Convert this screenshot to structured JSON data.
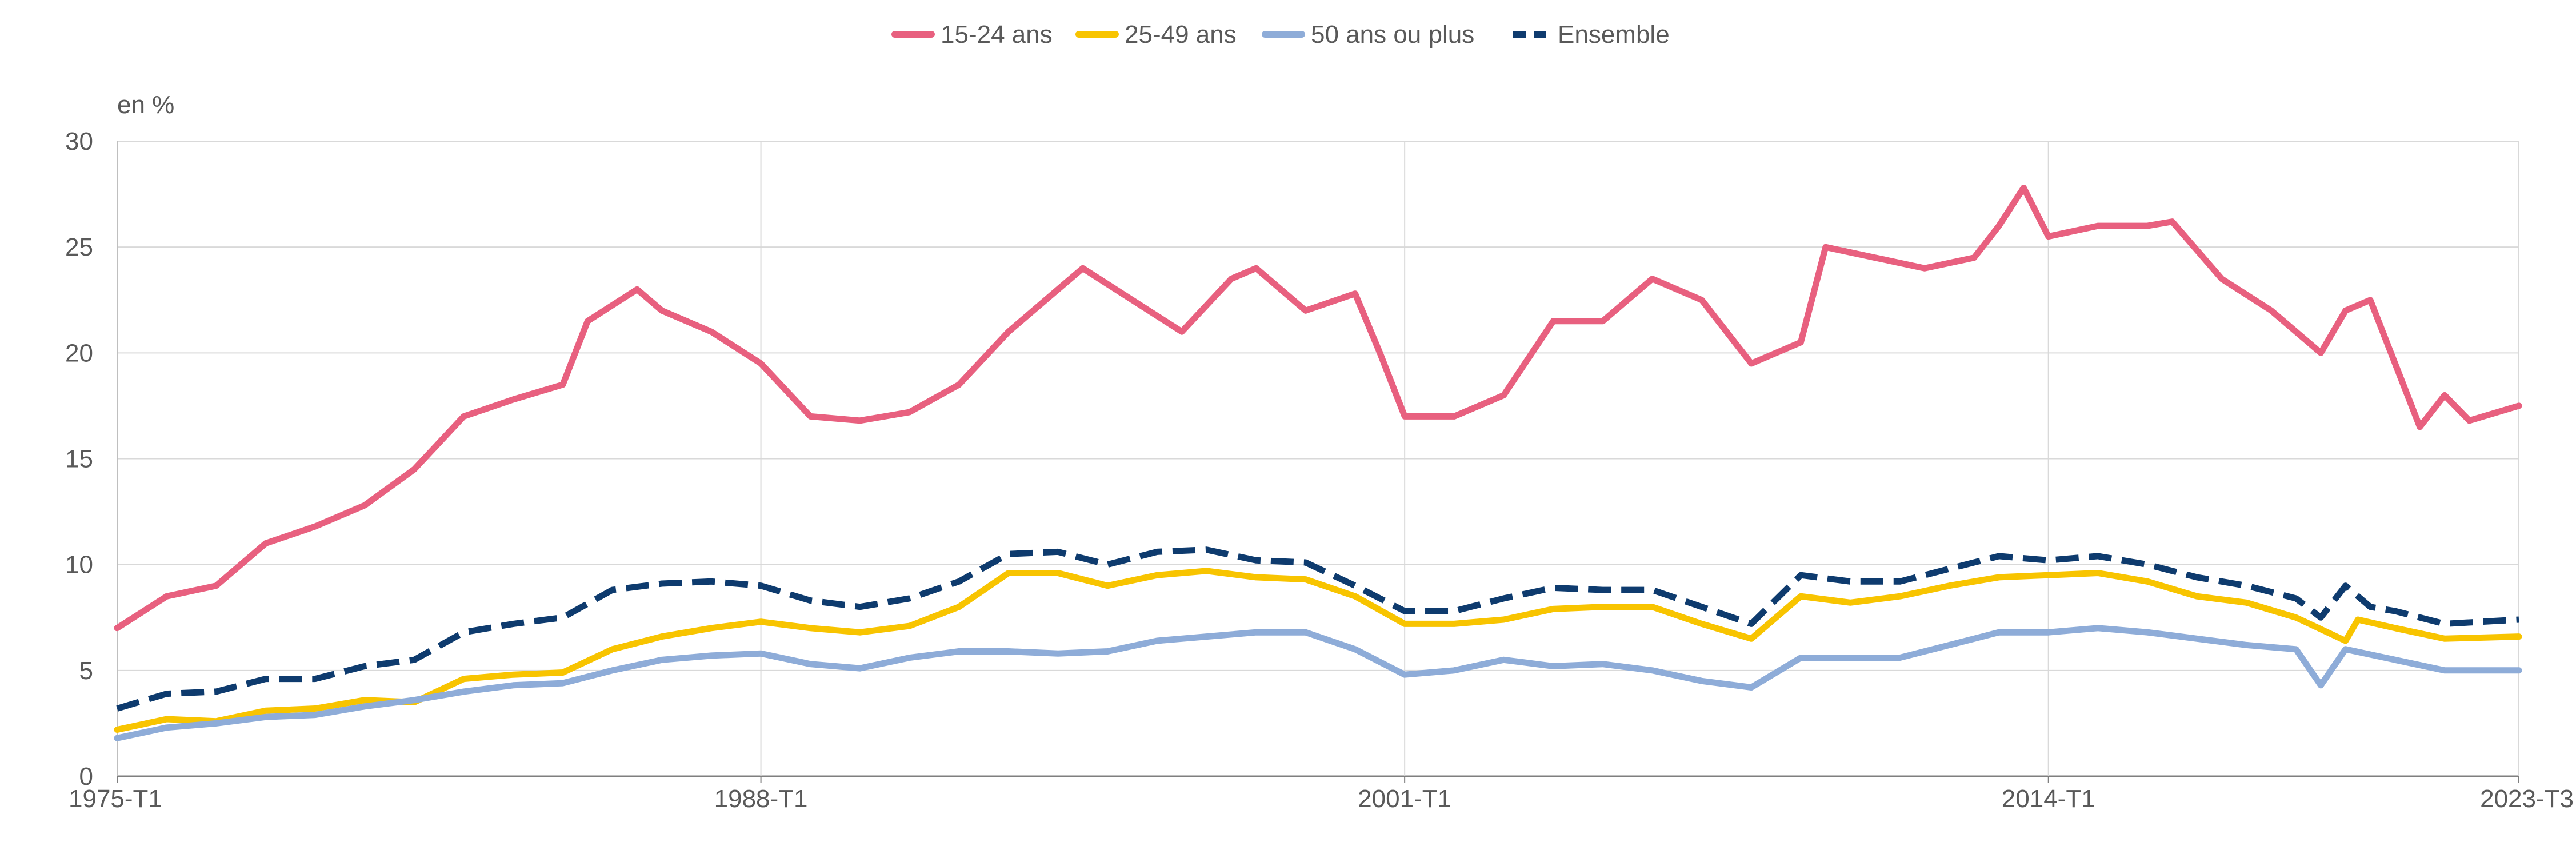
{
  "chart_data": {
    "type": "line",
    "unit_label": "en %",
    "y_range": [
      0,
      30
    ],
    "y_ticks": [
      0,
      5,
      10,
      15,
      20,
      25,
      30
    ],
    "x_range": [
      "1975-T1",
      "2023-T3"
    ],
    "x_tick_labels": [
      "1975-T1",
      "1988-T1",
      "2001-T1",
      "2014-T1",
      "2023-T3"
    ],
    "grid": true,
    "legend_position": "top-center",
    "series": [
      {
        "name": "15-24 ans",
        "color": "#e8607f",
        "dash": "solid",
        "points": [
          [
            "1975-T1",
            7.0
          ],
          [
            "1976-T1",
            8.5
          ],
          [
            "1977-T1",
            9.0
          ],
          [
            "1978-T1",
            11.0
          ],
          [
            "1979-T1",
            11.8
          ],
          [
            "1980-T1",
            12.8
          ],
          [
            "1981-T1",
            14.5
          ],
          [
            "1982-T1",
            17.0
          ],
          [
            "1983-T1",
            17.8
          ],
          [
            "1984-T1",
            18.5
          ],
          [
            "1984-T3",
            21.5
          ],
          [
            "1985-T3",
            23.0
          ],
          [
            "1986-T1",
            22.0
          ],
          [
            "1987-T1",
            21.0
          ],
          [
            "1988-T1",
            19.5
          ],
          [
            "1989-T1",
            17.0
          ],
          [
            "1990-T1",
            16.8
          ],
          [
            "1991-T1",
            17.2
          ],
          [
            "1992-T1",
            18.5
          ],
          [
            "1993-T1",
            21.0
          ],
          [
            "1994-T1",
            23.0
          ],
          [
            "1994-T3",
            24.0
          ],
          [
            "1995-T3",
            22.5
          ],
          [
            "1996-T3",
            21.0
          ],
          [
            "1997-T3",
            23.5
          ],
          [
            "1998-T1",
            24.0
          ],
          [
            "1999-T1",
            22.0
          ],
          [
            "2000-T1",
            22.8
          ],
          [
            "2000-T3",
            20.0
          ],
          [
            "2001-T1",
            17.0
          ],
          [
            "2002-T1",
            17.0
          ],
          [
            "2003-T1",
            18.0
          ],
          [
            "2004-T1",
            21.5
          ],
          [
            "2005-T1",
            21.5
          ],
          [
            "2006-T1",
            23.5
          ],
          [
            "2007-T1",
            22.5
          ],
          [
            "2008-T1",
            19.5
          ],
          [
            "2009-T1",
            20.5
          ],
          [
            "2009-T3",
            25.0
          ],
          [
            "2010-T3",
            24.5
          ],
          [
            "2011-T3",
            24.0
          ],
          [
            "2012-T3",
            24.5
          ],
          [
            "2013-T1",
            26.0
          ],
          [
            "2013-T3",
            27.8
          ],
          [
            "2014-T1",
            25.5
          ],
          [
            "2015-T1",
            26.0
          ],
          [
            "2016-T1",
            26.0
          ],
          [
            "2016-T3",
            26.2
          ],
          [
            "2017-T3",
            23.5
          ],
          [
            "2018-T3",
            22.0
          ],
          [
            "2019-T3",
            20.0
          ],
          [
            "2020-T1",
            22.0
          ],
          [
            "2020-T3",
            22.5
          ],
          [
            "2021-T1",
            19.5
          ],
          [
            "2021-T3",
            16.5
          ],
          [
            "2022-T1",
            18.0
          ],
          [
            "2022-T3",
            16.8
          ],
          [
            "2023-T3",
            17.5
          ]
        ]
      },
      {
        "name": "25-49 ans",
        "color": "#f8c400",
        "dash": "solid",
        "points": [
          [
            "1975-T1",
            2.2
          ],
          [
            "1976-T1",
            2.7
          ],
          [
            "1977-T1",
            2.6
          ],
          [
            "1978-T1",
            3.1
          ],
          [
            "1979-T1",
            3.2
          ],
          [
            "1980-T1",
            3.6
          ],
          [
            "1981-T1",
            3.5
          ],
          [
            "1982-T1",
            4.6
          ],
          [
            "1983-T1",
            4.8
          ],
          [
            "1984-T1",
            4.9
          ],
          [
            "1985-T1",
            6.0
          ],
          [
            "1986-T1",
            6.6
          ],
          [
            "1987-T1",
            7.0
          ],
          [
            "1988-T1",
            7.3
          ],
          [
            "1989-T1",
            7.0
          ],
          [
            "1990-T1",
            6.8
          ],
          [
            "1991-T1",
            7.1
          ],
          [
            "1992-T1",
            8.0
          ],
          [
            "1993-T1",
            9.6
          ],
          [
            "1994-T1",
            9.6
          ],
          [
            "1995-T1",
            9.0
          ],
          [
            "1996-T1",
            9.5
          ],
          [
            "1997-T1",
            9.7
          ],
          [
            "1998-T1",
            9.4
          ],
          [
            "1999-T1",
            9.3
          ],
          [
            "2000-T1",
            8.5
          ],
          [
            "2001-T1",
            7.2
          ],
          [
            "2002-T1",
            7.2
          ],
          [
            "2003-T1",
            7.4
          ],
          [
            "2004-T1",
            7.9
          ],
          [
            "2005-T1",
            8.0
          ],
          [
            "2006-T1",
            8.0
          ],
          [
            "2007-T1",
            7.2
          ],
          [
            "2008-T1",
            6.5
          ],
          [
            "2009-T1",
            8.5
          ],
          [
            "2010-T1",
            8.2
          ],
          [
            "2011-T1",
            8.5
          ],
          [
            "2012-T1",
            9.0
          ],
          [
            "2013-T1",
            9.4
          ],
          [
            "2014-T1",
            9.5
          ],
          [
            "2015-T1",
            9.6
          ],
          [
            "2016-T1",
            9.2
          ],
          [
            "2017-T1",
            8.5
          ],
          [
            "2018-T1",
            8.2
          ],
          [
            "2019-T1",
            7.5
          ],
          [
            "2020-T1",
            6.4
          ],
          [
            "2020-T2",
            7.4
          ],
          [
            "2021-T1",
            7.0
          ],
          [
            "2022-T1",
            6.5
          ],
          [
            "2023-T3",
            6.6
          ]
        ]
      },
      {
        "name": "50 ans ou plus",
        "color": "#8eacd8",
        "dash": "solid",
        "points": [
          [
            "1975-T1",
            1.8
          ],
          [
            "1976-T1",
            2.3
          ],
          [
            "1977-T1",
            2.5
          ],
          [
            "1978-T1",
            2.8
          ],
          [
            "1979-T1",
            2.9
          ],
          [
            "1980-T1",
            3.3
          ],
          [
            "1981-T1",
            3.6
          ],
          [
            "1982-T1",
            4.0
          ],
          [
            "1983-T1",
            4.3
          ],
          [
            "1984-T1",
            4.4
          ],
          [
            "1985-T1",
            5.0
          ],
          [
            "1986-T1",
            5.5
          ],
          [
            "1987-T1",
            5.7
          ],
          [
            "1988-T1",
            5.8
          ],
          [
            "1989-T1",
            5.3
          ],
          [
            "1990-T1",
            5.1
          ],
          [
            "1991-T1",
            5.6
          ],
          [
            "1992-T1",
            5.9
          ],
          [
            "1993-T1",
            5.9
          ],
          [
            "1994-T1",
            5.8
          ],
          [
            "1995-T1",
            5.9
          ],
          [
            "1996-T1",
            6.4
          ],
          [
            "1997-T1",
            6.6
          ],
          [
            "1998-T1",
            6.8
          ],
          [
            "1999-T1",
            6.8
          ],
          [
            "2000-T1",
            6.0
          ],
          [
            "2001-T1",
            4.8
          ],
          [
            "2002-T1",
            5.0
          ],
          [
            "2003-T1",
            5.5
          ],
          [
            "2004-T1",
            5.2
          ],
          [
            "2005-T1",
            5.3
          ],
          [
            "2006-T1",
            5.0
          ],
          [
            "2007-T1",
            4.5
          ],
          [
            "2008-T1",
            4.2
          ],
          [
            "2009-T1",
            5.6
          ],
          [
            "2010-T1",
            5.6
          ],
          [
            "2011-T1",
            5.6
          ],
          [
            "2012-T1",
            6.2
          ],
          [
            "2013-T1",
            6.8
          ],
          [
            "2014-T1",
            6.8
          ],
          [
            "2015-T1",
            7.0
          ],
          [
            "2016-T1",
            6.8
          ],
          [
            "2017-T1",
            6.5
          ],
          [
            "2018-T1",
            6.2
          ],
          [
            "2019-T1",
            6.0
          ],
          [
            "2019-T3",
            4.3
          ],
          [
            "2020-T1",
            6.0
          ],
          [
            "2021-T1",
            5.5
          ],
          [
            "2022-T1",
            5.0
          ],
          [
            "2023-T3",
            5.0
          ]
        ]
      },
      {
        "name": "Ensemble",
        "color": "#0e3b6e",
        "dash": "dashed",
        "points": [
          [
            "1975-T1",
            3.2
          ],
          [
            "1976-T1",
            3.9
          ],
          [
            "1977-T1",
            4.0
          ],
          [
            "1978-T1",
            4.6
          ],
          [
            "1979-T1",
            4.6
          ],
          [
            "1980-T1",
            5.2
          ],
          [
            "1981-T1",
            5.5
          ],
          [
            "1982-T1",
            6.8
          ],
          [
            "1983-T1",
            7.2
          ],
          [
            "1984-T1",
            7.5
          ],
          [
            "1985-T1",
            8.8
          ],
          [
            "1986-T1",
            9.1
          ],
          [
            "1987-T1",
            9.2
          ],
          [
            "1988-T1",
            9.0
          ],
          [
            "1989-T1",
            8.3
          ],
          [
            "1990-T1",
            8.0
          ],
          [
            "1991-T1",
            8.4
          ],
          [
            "1992-T1",
            9.2
          ],
          [
            "1993-T1",
            10.5
          ],
          [
            "1994-T1",
            10.6
          ],
          [
            "1995-T1",
            10.0
          ],
          [
            "1996-T1",
            10.6
          ],
          [
            "1997-T1",
            10.7
          ],
          [
            "1998-T1",
            10.2
          ],
          [
            "1999-T1",
            10.1
          ],
          [
            "2000-T1",
            9.0
          ],
          [
            "2001-T1",
            7.8
          ],
          [
            "2002-T1",
            7.8
          ],
          [
            "2003-T1",
            8.4
          ],
          [
            "2004-T1",
            8.9
          ],
          [
            "2005-T1",
            8.8
          ],
          [
            "2006-T1",
            8.8
          ],
          [
            "2007-T1",
            8.0
          ],
          [
            "2008-T1",
            7.2
          ],
          [
            "2009-T1",
            9.5
          ],
          [
            "2010-T1",
            9.2
          ],
          [
            "2011-T1",
            9.2
          ],
          [
            "2012-T1",
            9.8
          ],
          [
            "2013-T1",
            10.4
          ],
          [
            "2014-T1",
            10.2
          ],
          [
            "2015-T1",
            10.4
          ],
          [
            "2016-T1",
            10.0
          ],
          [
            "2017-T1",
            9.4
          ],
          [
            "2018-T1",
            9.0
          ],
          [
            "2019-T1",
            8.4
          ],
          [
            "2019-T3",
            7.5
          ],
          [
            "2020-T1",
            9.0
          ],
          [
            "2020-T3",
            8.0
          ],
          [
            "2021-T1",
            7.8
          ],
          [
            "2022-T1",
            7.2
          ],
          [
            "2023-T3",
            7.4
          ]
        ]
      }
    ]
  }
}
